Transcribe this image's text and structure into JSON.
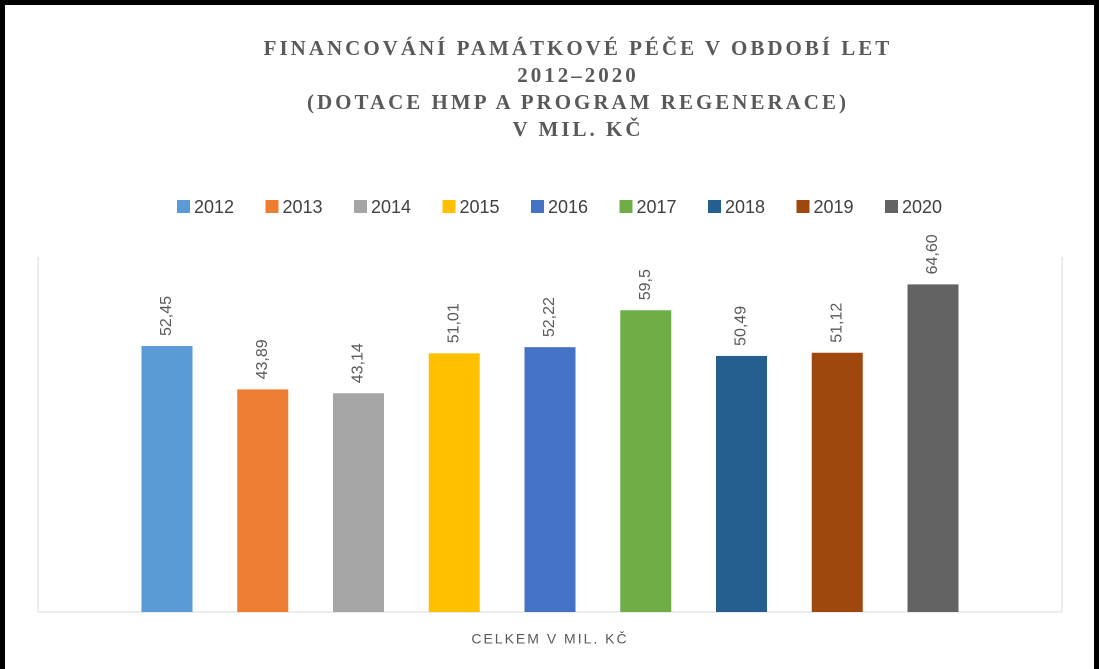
{
  "chart_data": {
    "type": "bar",
    "title": [
      "FINANCOVÁNÍ PAMÁTKOVÉ PÉČE V OBDOBÍ LET",
      "2012–2020",
      "(DOTACE HMP A PROGRAM REGENERACE)",
      "V MIL. KČ"
    ],
    "categories": [
      "CELKEM V MIL. KČ"
    ],
    "series": [
      {
        "name": "2012",
        "color": "#5b9bd5",
        "values": [
          52.45
        ],
        "value_labels": [
          "52,45"
        ]
      },
      {
        "name": "2013",
        "color": "#ed7d31",
        "values": [
          43.89
        ],
        "value_labels": [
          "43,89"
        ]
      },
      {
        "name": "2014",
        "color": "#a5a5a5",
        "values": [
          43.14
        ],
        "value_labels": [
          "43,14"
        ]
      },
      {
        "name": "2015",
        "color": "#ffc000",
        "values": [
          51.01
        ],
        "value_labels": [
          "51,01"
        ]
      },
      {
        "name": "2016",
        "color": "#4472c4",
        "values": [
          52.22
        ],
        "value_labels": [
          "52,22"
        ]
      },
      {
        "name": "2017",
        "color": "#70ad47",
        "values": [
          59.5
        ],
        "value_labels": [
          "59,5"
        ]
      },
      {
        "name": "2018",
        "color": "#255e91",
        "values": [
          50.49
        ],
        "value_labels": [
          "50,49"
        ]
      },
      {
        "name": "2019",
        "color": "#9e480e",
        "values": [
          51.12
        ],
        "value_labels": [
          "51,12"
        ]
      },
      {
        "name": "2020",
        "color": "#636363",
        "values": [
          64.6
        ],
        "value_labels": [
          "64,60"
        ]
      }
    ],
    "ylim": [
      0,
      70
    ],
    "legend": "top"
  }
}
